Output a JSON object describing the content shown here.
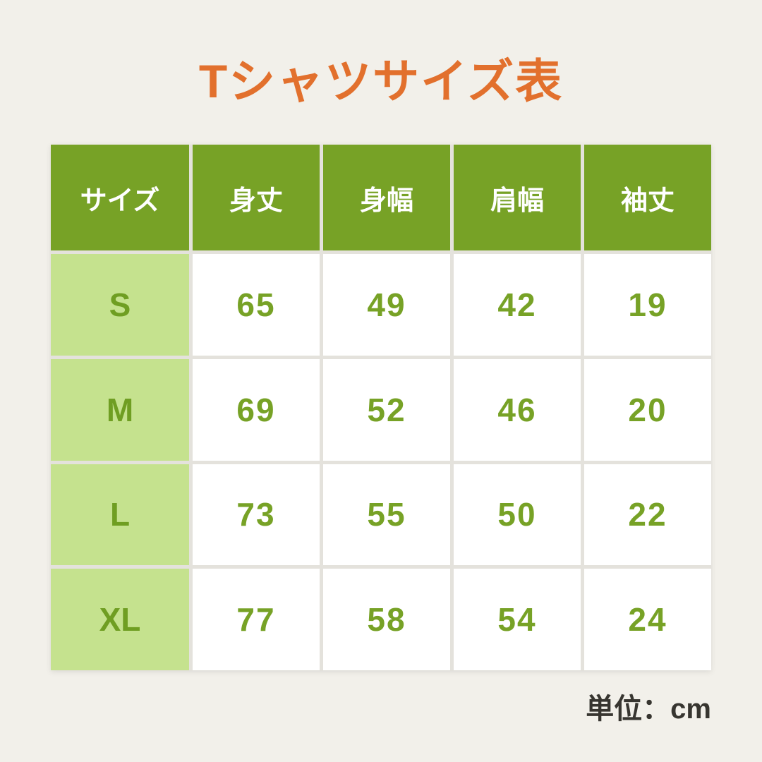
{
  "page": {
    "title": "Tシャツサイズ表",
    "unit_note": "単位：cm",
    "colors": {
      "background": "#F2F0EA",
      "title_orange": "#E2702D",
      "header_green": "#77A226",
      "row_label_bg_light_green": "#C5E28E",
      "row_label_text_green": "#6F9E22",
      "value_text_green": "#77A226",
      "cell_white": "#FFFFFF",
      "gap_gray": "#E4E2DC",
      "note_dark": "#373530"
    }
  },
  "chart_data": {
    "type": "table",
    "title": "Tシャツサイズ表",
    "columns": [
      "サイズ",
      "身丈",
      "身幅",
      "肩幅",
      "袖丈"
    ],
    "rows": [
      {
        "size": "S",
        "values": [
          65,
          49,
          42,
          19
        ]
      },
      {
        "size": "M",
        "values": [
          69,
          52,
          46,
          20
        ]
      },
      {
        "size": "L",
        "values": [
          73,
          55,
          50,
          22
        ]
      },
      {
        "size": "XL",
        "values": [
          77,
          58,
          54,
          24
        ]
      }
    ],
    "unit": "cm",
    "layout": {
      "header_position": "top",
      "row_label_column": "left"
    }
  }
}
